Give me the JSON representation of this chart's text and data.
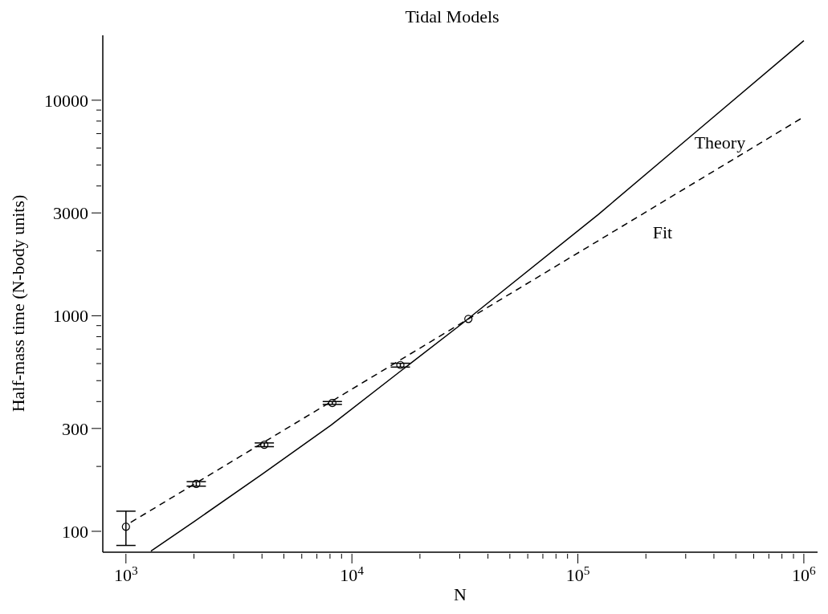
{
  "chart_data": {
    "type": "line",
    "title": "Tidal Models",
    "xlabel": "N",
    "ylabel": "Half-mass time (N-body units)",
    "log": "xy",
    "xlim": [
      790,
      1150000
    ],
    "xticks": [
      {
        "value": 1000,
        "label": "10$^{3}$"
      },
      {
        "value": 2000,
        "label": null
      },
      {
        "value": 3000,
        "label": null
      },
      {
        "value": 4000,
        "label": null
      },
      {
        "value": 5000,
        "label": null
      },
      {
        "value": 6000,
        "label": null
      },
      {
        "value": 7000,
        "label": null
      },
      {
        "value": 8000,
        "label": null
      },
      {
        "value": 9000,
        "label": null
      },
      {
        "value": 10000,
        "label": "10$^{4}$"
      },
      {
        "value": 20000,
        "label": null
      },
      {
        "value": 30000,
        "label": null
      },
      {
        "value": 40000,
        "label": null
      },
      {
        "value": 50000,
        "label": null
      },
      {
        "value": 60000,
        "label": null
      },
      {
        "value": 70000,
        "label": null
      },
      {
        "value": 80000,
        "label": null
      },
      {
        "value": 90000,
        "label": null
      },
      {
        "value": 100000,
        "label": "10$^{5}$"
      },
      {
        "value": 200000,
        "label": null
      },
      {
        "value": 300000,
        "label": null
      },
      {
        "value": 400000,
        "label": null
      },
      {
        "value": 500000,
        "label": null
      },
      {
        "value": 600000,
        "label": null
      },
      {
        "value": 700000,
        "label": null
      },
      {
        "value": 800000,
        "label": null
      },
      {
        "value": 900000,
        "label": null
      },
      {
        "value": 1000000,
        "label": "10$^{6}$"
      }
    ],
    "ylim": [
      80,
      20000
    ],
    "yticks": [
      100,
      {
        "value": 200,
        "label": null
      },
      300,
      {
        "value": 400,
        "label": null
      },
      {
        "value": 500,
        "label": null
      },
      {
        "value": 600,
        "label": null
      },
      {
        "value": 700,
        "label": null
      },
      {
        "value": 800,
        "label": null
      },
      {
        "value": 900,
        "label": null
      },
      1000,
      {
        "value": 2000,
        "label": null
      },
      3000,
      {
        "value": 4000,
        "label": null
      },
      {
        "value": 5000,
        "label": null
      },
      {
        "value": 6000,
        "label": null
      },
      {
        "value": 7000,
        "label": null
      },
      {
        "value": 8000,
        "label": null
      },
      {
        "value": 9000,
        "label": null
      },
      10000
    ],
    "series": [
      {
        "name": "Theory",
        "color": "#000000",
        "line_style": "solid",
        "marker": "none",
        "x": [
          1290,
          2003,
          4003,
          8090,
          16400,
          30800,
          123600,
          330000,
          1000000
        ],
        "values": [
          81,
          111,
          184,
          311,
          553,
          921,
          2960,
          7070,
          18900
        ]
      },
      {
        "name": "Fit",
        "color": "#000000",
        "line_style": "dashed",
        "marker": "none",
        "x": [
          1050,
          1000000
        ],
        "values": [
          110,
          8370
        ]
      },
      {
        "type": "scatter",
        "color": "#000000",
        "marker": "circle",
        "x": [
          1000,
          2048,
          4096,
          8192,
          16384,
          32768
        ],
        "values": [
          105,
          166,
          252,
          394,
          591,
          967
        ],
        "errors": [
          [
            86,
            124
          ],
          [
            162,
            170
          ],
          [
            247,
            257
          ],
          [
            388,
            400
          ],
          [
            578,
            602
          ],
          null
        ]
      }
    ]
  }
}
